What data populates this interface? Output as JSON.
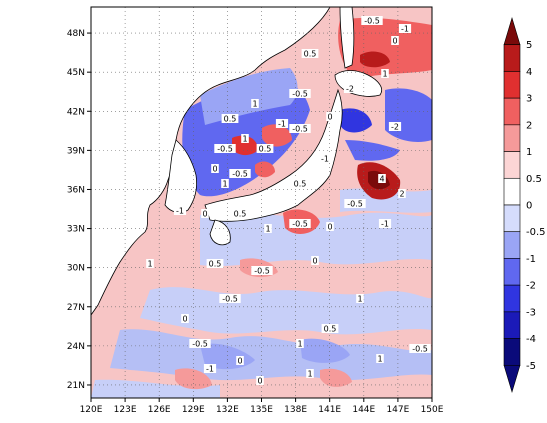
{
  "map": {
    "lon_ticks": [
      "120E",
      "123E",
      "126E",
      "129E",
      "132E",
      "135E",
      "138E",
      "141E",
      "144E",
      "147E",
      "150E"
    ],
    "lat_ticks": [
      "48N",
      "45N",
      "42N",
      "39N",
      "36N",
      "33N",
      "30N",
      "27N",
      "24N",
      "21N"
    ],
    "lon_range": [
      120,
      150
    ],
    "lat_range": [
      20,
      50
    ],
    "grid": "dotted",
    "colors": {
      "land": "#ffffff",
      "coast": "#000000",
      "grid": "#666666"
    },
    "contour_labels": [
      "-0.5",
      "-1",
      "0",
      "0.5",
      "1",
      "-2",
      "-0.5",
      "1",
      "0.5",
      "-1",
      "-0.5",
      "0",
      "1",
      "-0.5",
      "0.5",
      "-1",
      "0",
      "-0.5",
      "1",
      "0.5",
      "-0.5",
      "-1",
      "0",
      "0.5",
      "1",
      "-0.5",
      "0",
      "-1",
      "1",
      "0.5",
      "-0.5",
      "0",
      "1",
      "-0.5",
      "0",
      "0.5",
      "1",
      "-0.5",
      "0",
      "1",
      "-1",
      "-0.5",
      "0",
      "1",
      "4",
      "2",
      "-2"
    ]
  },
  "colorbar": {
    "labels": [
      "5",
      "4",
      "3",
      "2",
      "1",
      "0.5",
      "0",
      "-0.5",
      "-1",
      "-2",
      "-3",
      "-4",
      "-5"
    ],
    "colors": [
      "#7a0a0a",
      "#b81b1b",
      "#e03030",
      "#f06060",
      "#f59a9a",
      "#fcd5d5",
      "#ffffff",
      "#d5dcfc",
      "#9aa5f5",
      "#6068f0",
      "#3035e0",
      "#1b1ab8",
      "#0a0a7a"
    ]
  }
}
